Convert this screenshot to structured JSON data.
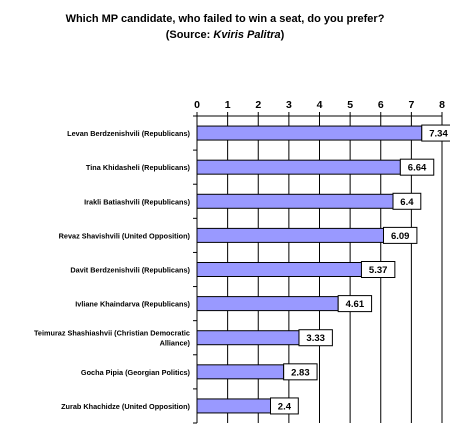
{
  "title_line1": "Which MP candidate, who failed to win a seat, do you prefer?",
  "title_line2_prefix": "(Source: ",
  "title_line2_source": "Kviris Palitra",
  "title_line2_suffix": ")",
  "colors": {
    "bar_fill": "#9999FF",
    "bar_stroke": "#000000",
    "axis": "#000000",
    "grid": "#000000",
    "label_box_fill": "#FFFFFF"
  },
  "chart_data": {
    "type": "bar",
    "orientation": "horizontal",
    "categories": [
      [
        "Levan Berdzenishvili (Republicans)"
      ],
      [
        "Tina Khidasheli (Republicans)"
      ],
      [
        "Irakli Batiashvili (Republicans)"
      ],
      [
        "Revaz Shavishvili (United Opposition)"
      ],
      [
        "Davit Berdzenishvili (Republicans)"
      ],
      [
        "Ivliane Khaindarva (Republicans)"
      ],
      [
        "Teimuraz Shashiashvii (Christian Democratic",
        "Alliance)"
      ],
      [
        "Gocha Pipia (Georgian Politics)"
      ],
      [
        "Zurab Khachidze (United Opposition)"
      ]
    ],
    "values": [
      7.34,
      6.64,
      6.4,
      6.09,
      5.37,
      4.61,
      3.33,
      2.83,
      2.4
    ],
    "value_labels": [
      "7.34",
      "6.64",
      "6.4",
      "6.09",
      "5.37",
      "4.61",
      "3.33",
      "2.83",
      "2.4"
    ],
    "xlim": [
      0,
      8
    ],
    "xticks": [
      "0",
      "1",
      "2",
      "3",
      "4",
      "5",
      "6",
      "7",
      "8"
    ],
    "x_axis_position": "top",
    "grid": "vertical",
    "legend": "none",
    "xlabel": "",
    "ylabel": ""
  }
}
